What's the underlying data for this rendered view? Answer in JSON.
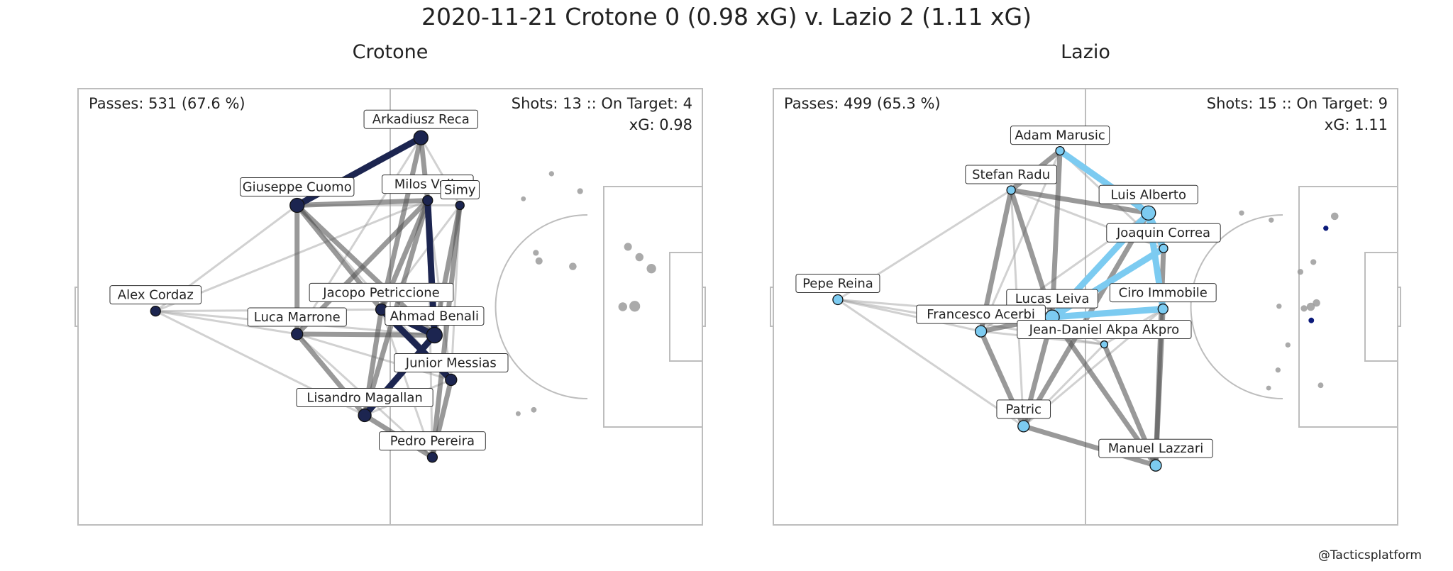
{
  "title": "2020-11-21 Crotone 0 (0.98 xG) v. Lazio 2 (1.11 xG)",
  "credit": "@Tacticsplatform",
  "chart_data": [
    {
      "type": "scatter",
      "team": "Crotone",
      "color": "#1c2550",
      "xlim": [
        0,
        120
      ],
      "ylim": [
        0,
        80
      ],
      "grid": false,
      "stats": {
        "passes": "Passes: 531 (67.6 %)",
        "shots": "Shots: 13 :: On Target: 4",
        "xg": "xG: 0.98"
      },
      "players": [
        {
          "name": "Arkadiusz Reca",
          "x": 65.9,
          "y": 71.0,
          "size": 10
        },
        {
          "name": "Milos Vulic",
          "x": 67.2,
          "y": 59.5,
          "size": 7
        },
        {
          "name": "Giuseppe Cuomo",
          "x": 42.1,
          "y": 58.6,
          "size": 10
        },
        {
          "name": "Simy",
          "x": 73.4,
          "y": 58.6,
          "size": 6
        },
        {
          "name": "Alex Cordaz",
          "x": 14.9,
          "y": 39.2,
          "size": 7
        },
        {
          "name": "Jacopo Petriccione",
          "x": 58.3,
          "y": 39.5,
          "size": 8
        },
        {
          "name": "Luca Marrone",
          "x": 42.1,
          "y": 35.0,
          "size": 8
        },
        {
          "name": "Ahmad Benali",
          "x": 68.5,
          "y": 34.8,
          "size": 11
        },
        {
          "name": "Junior Messias",
          "x": 71.7,
          "y": 26.6,
          "size": 8
        },
        {
          "name": "Lisandro Magallan",
          "x": 55.1,
          "y": 20.1,
          "size": 9
        },
        {
          "name": "Pedro Pereira",
          "x": 68.1,
          "y": 12.4,
          "size": 7
        }
      ],
      "strong_links": [
        [
          "Arkadiusz Reca",
          "Giuseppe Cuomo"
        ],
        [
          "Milos Vulic",
          "Ahmad Benali"
        ],
        [
          "Jacopo Petriccione",
          "Ahmad Benali"
        ],
        [
          "Jacopo Petriccione",
          "Junior Messias"
        ],
        [
          "Ahmad Benali",
          "Lisandro Magallan"
        ]
      ],
      "medium_links": [
        [
          "Giuseppe Cuomo",
          "Milos Vulic"
        ],
        [
          "Giuseppe Cuomo",
          "Luca Marrone"
        ],
        [
          "Arkadiusz Reca",
          "Milos Vulic"
        ],
        [
          "Arkadiusz Reca",
          "Jacopo Petriccione"
        ],
        [
          "Milos Vulic",
          "Jacopo Petriccione"
        ],
        [
          "Milos Vulic",
          "Luca Marrone"
        ],
        [
          "Milos Vulic",
          "Lisandro Magallan"
        ],
        [
          "Simy",
          "Ahmad Benali"
        ],
        [
          "Simy",
          "Pedro Pereira"
        ],
        [
          "Luca Marrone",
          "Lisandro Magallan"
        ],
        [
          "Luca Marrone",
          "Ahmad Benali"
        ],
        [
          "Giuseppe Cuomo",
          "Jacopo Petriccione"
        ],
        [
          "Lisandro Magallan",
          "Pedro Pereira"
        ],
        [
          "Junior Messias",
          "Pedro Pereira"
        ],
        [
          "Jacopo Petriccione",
          "Lisandro Magallan"
        ],
        [
          "Giuseppe Cuomo",
          "Ahmad Benali"
        ]
      ],
      "light_links": [
        [
          "Alex Cordaz",
          "Giuseppe Cuomo"
        ],
        [
          "Alex Cordaz",
          "Luca Marrone"
        ],
        [
          "Alex Cordaz",
          "Jacopo Petriccione"
        ],
        [
          "Alex Cordaz",
          "Lisandro Magallan"
        ],
        [
          "Alex Cordaz",
          "Milos Vulic"
        ],
        [
          "Alex Cordaz",
          "Ahmad Benali"
        ],
        [
          "Giuseppe Cuomo",
          "Simy"
        ],
        [
          "Giuseppe Cuomo",
          "Junior Messias"
        ],
        [
          "Arkadiusz Reca",
          "Simy"
        ],
        [
          "Arkadiusz Reca",
          "Luca Marrone"
        ],
        [
          "Simy",
          "Jacopo Petriccione"
        ],
        [
          "Simy",
          "Junior Messias"
        ],
        [
          "Luca Marrone",
          "Junior Messias"
        ],
        [
          "Luca Marrone",
          "Pedro Pereira"
        ],
        [
          "Milos Vulic",
          "Pedro Pereira"
        ],
        [
          "Milos Vulic",
          "Junior Messias"
        ],
        [
          "Jacopo Petriccione",
          "Pedro Pereira"
        ],
        [
          "Lisandro Magallan",
          "Junior Messias"
        ]
      ],
      "shots": [
        {
          "x": 91.0,
          "y": 64.4,
          "size": 1.6,
          "on_target": false
        },
        {
          "x": 96.5,
          "y": 61.2,
          "size": 1.8,
          "on_target": false
        },
        {
          "x": 85.6,
          "y": 59.8,
          "size": 1.5,
          "on_target": false
        },
        {
          "x": 105.7,
          "y": 51.0,
          "size": 2.4,
          "on_target": false
        },
        {
          "x": 107.9,
          "y": 49.1,
          "size": 2.5,
          "on_target": false
        },
        {
          "x": 88.6,
          "y": 48.4,
          "size": 2.2,
          "on_target": false
        },
        {
          "x": 95.1,
          "y": 47.4,
          "size": 2.3,
          "on_target": false
        },
        {
          "x": 110.2,
          "y": 47.0,
          "size": 2.9,
          "on_target": false
        },
        {
          "x": 88.0,
          "y": 49.9,
          "size": 1.8,
          "on_target": false
        },
        {
          "x": 107.0,
          "y": 40.1,
          "size": 3.3,
          "on_target": false
        },
        {
          "x": 104.7,
          "y": 40.0,
          "size": 2.7,
          "on_target": false
        },
        {
          "x": 87.6,
          "y": 21.1,
          "size": 1.7,
          "on_target": false
        },
        {
          "x": 84.6,
          "y": 20.4,
          "size": 1.5,
          "on_target": false
        }
      ]
    },
    {
      "type": "scatter",
      "team": "Lazio",
      "color": "#7ccbf1",
      "xlim": [
        0,
        120
      ],
      "ylim": [
        0,
        80
      ],
      "grid": false,
      "stats": {
        "passes": "Passes: 499 (65.3 %)",
        "shots": "Shots: 15 :: On Target: 9",
        "xg": "xG: 1.11"
      },
      "players": [
        {
          "name": "Adam Marusic",
          "x": 55.1,
          "y": 68.6,
          "size": 6
        },
        {
          "name": "Stefan Radu",
          "x": 45.7,
          "y": 61.4,
          "size": 6
        },
        {
          "name": "Luis Alberto",
          "x": 72.1,
          "y": 57.2,
          "size": 10
        },
        {
          "name": "Joaquin Correa",
          "x": 75.0,
          "y": 50.7,
          "size": 6
        },
        {
          "name": "Pepe Reina",
          "x": 12.4,
          "y": 41.3,
          "size": 7
        },
        {
          "name": "Lucas Leiva",
          "x": 53.6,
          "y": 38.1,
          "size": 10
        },
        {
          "name": "Ciro Immobile",
          "x": 74.9,
          "y": 39.6,
          "size": 7
        },
        {
          "name": "Francesco Acerbi",
          "x": 39.9,
          "y": 35.5,
          "size": 8
        },
        {
          "name": "Jean-Daniel Akpa Akpro",
          "x": 63.6,
          "y": 33.1,
          "size": 5
        },
        {
          "name": "Patric",
          "x": 48.1,
          "y": 18.1,
          "size": 8
        },
        {
          "name": "Manuel Lazzari",
          "x": 73.5,
          "y": 10.9,
          "size": 8
        }
      ],
      "strong_links": [
        [
          "Adam Marusic",
          "Luis Alberto"
        ],
        [
          "Luis Alberto",
          "Ciro Immobile"
        ],
        [
          "Luis Alberto",
          "Lucas Leiva"
        ],
        [
          "Joaquin Correa",
          "Lucas Leiva"
        ],
        [
          "Lucas Leiva",
          "Ciro Immobile"
        ],
        [
          "Luis Alberto",
          "Joaquin Correa"
        ]
      ],
      "medium_links": [
        [
          "Stefan Radu",
          "Francesco Acerbi"
        ],
        [
          "Stefan Radu",
          "Lucas Leiva"
        ],
        [
          "Stefan Radu",
          "Luis Alberto"
        ],
        [
          "Adam Marusic",
          "Stefan Radu"
        ],
        [
          "Adam Marusic",
          "Lucas Leiva"
        ],
        [
          "Francesco Acerbi",
          "Patric"
        ],
        [
          "Francesco Acerbi",
          "Lucas Leiva"
        ],
        [
          "Patric",
          "Manuel Lazzari"
        ],
        [
          "Patric",
          "Lucas Leiva"
        ],
        [
          "Lucas Leiva",
          "Manuel Lazzari"
        ],
        [
          "Ciro Immobile",
          "Manuel Lazzari"
        ],
        [
          "Joaquin Correa",
          "Manuel Lazzari"
        ],
        [
          "Jean-Daniel Akpa Akpro",
          "Manuel Lazzari"
        ],
        [
          "Patric",
          "Luis Alberto"
        ]
      ],
      "light_links": [
        [
          "Pepe Reina",
          "Stefan Radu"
        ],
        [
          "Pepe Reina",
          "Francesco Acerbi"
        ],
        [
          "Pepe Reina",
          "Lucas Leiva"
        ],
        [
          "Pepe Reina",
          "Patric"
        ],
        [
          "Pepe Reina",
          "Jean-Daniel Akpa Akpro"
        ],
        [
          "Adam Marusic",
          "Joaquin Correa"
        ],
        [
          "Adam Marusic",
          "Francesco Acerbi"
        ],
        [
          "Stefan Radu",
          "Patric"
        ],
        [
          "Francesco Acerbi",
          "Luis Alberto"
        ],
        [
          "Francesco Acerbi",
          "Jean-Daniel Akpa Akpro"
        ],
        [
          "Patric",
          "Jean-Daniel Akpa Akpro"
        ],
        [
          "Patric",
          "Ciro Immobile"
        ],
        [
          "Jean-Daniel Akpa Akpro",
          "Ciro Immobile"
        ],
        [
          "Lucas Leiva",
          "Jean-Daniel Akpa Akpro"
        ],
        [
          "Stefan Radu",
          "Joaquin Correa"
        ]
      ],
      "shots": [
        {
          "x": 107.9,
          "y": 56.6,
          "size": 2.3,
          "on_target": false
        },
        {
          "x": 106.2,
          "y": 54.4,
          "size": 1.6,
          "on_target": true
        },
        {
          "x": 90.0,
          "y": 57.2,
          "size": 1.6,
          "on_target": false
        },
        {
          "x": 95.7,
          "y": 55.9,
          "size": 1.6,
          "on_target": false
        },
        {
          "x": 103.8,
          "y": 48.2,
          "size": 1.8,
          "on_target": false
        },
        {
          "x": 101.3,
          "y": 46.4,
          "size": 1.8,
          "on_target": false
        },
        {
          "x": 104.4,
          "y": 40.7,
          "size": 2.3,
          "on_target": false
        },
        {
          "x": 103.3,
          "y": 40.0,
          "size": 2.5,
          "on_target": false
        },
        {
          "x": 102.0,
          "y": 39.7,
          "size": 2.0,
          "on_target": false
        },
        {
          "x": 97.2,
          "y": 40.1,
          "size": 1.6,
          "on_target": false
        },
        {
          "x": 103.4,
          "y": 37.5,
          "size": 1.7,
          "on_target": true
        },
        {
          "x": 98.9,
          "y": 33.0,
          "size": 1.6,
          "on_target": false
        },
        {
          "x": 97.0,
          "y": 28.4,
          "size": 1.6,
          "on_target": false
        },
        {
          "x": 105.2,
          "y": 25.6,
          "size": 1.7,
          "on_target": false
        },
        {
          "x": 95.2,
          "y": 25.1,
          "size": 1.5,
          "on_target": false
        }
      ]
    }
  ]
}
